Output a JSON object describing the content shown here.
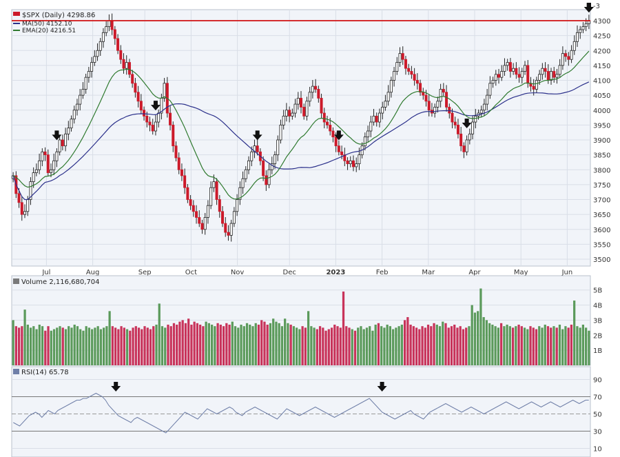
{
  "chart_data": [
    {
      "type": "candlestick",
      "legend": {
        "symbol": "$SPX (Daily) 4298.86",
        "ma": "MA(50) 4152.10",
        "ema": "EMA(20) 4216.51"
      },
      "colors": {
        "up": "#3a7a3a",
        "down": "#cc1a2a",
        "ma": "#2a2f8a",
        "ema": "#2f7a2f",
        "resistance": "#d01010"
      },
      "y_ticks": [
        "4300",
        "4250",
        "4200",
        "4150",
        "4100",
        "4050",
        "4000",
        "3950",
        "3900",
        "3850",
        "3800",
        "3750",
        "3700",
        "3650",
        "3600",
        "3550",
        "3500"
      ],
      "x_ticks": [
        "Jul",
        "Aug",
        "Sep",
        "Oct",
        "Nov",
        "Dec",
        "2023",
        "Feb",
        "Mar",
        "Apr",
        "May",
        "Jun"
      ],
      "resistance_level": 4300,
      "closes": [
        3780,
        3720,
        3690,
        3650,
        3660,
        3700,
        3760,
        3790,
        3800,
        3830,
        3860,
        3850,
        3790,
        3800,
        3830,
        3860,
        3900,
        3880,
        3920,
        3940,
        3970,
        4000,
        4020,
        4050,
        4070,
        4110,
        4130,
        4160,
        4180,
        4200,
        4230,
        4260,
        4280,
        4300,
        4270,
        4240,
        4200,
        4170,
        4140,
        4160,
        4120,
        4090,
        4060,
        4030,
        4000,
        3980,
        3960,
        3950,
        3930,
        3960,
        3990,
        4040,
        4090,
        3990,
        3950,
        3880,
        3840,
        3800,
        3780,
        3740,
        3700,
        3680,
        3660,
        3640,
        3620,
        3600,
        3640,
        3680,
        3740,
        3760,
        3700,
        3660,
        3620,
        3590,
        3580,
        3620,
        3660,
        3700,
        3740,
        3770,
        3800,
        3830,
        3860,
        3880,
        3860,
        3830,
        3780,
        3750,
        3800,
        3820,
        3850,
        3900,
        3950,
        3980,
        4000,
        3980,
        3990,
        4020,
        4040,
        4010,
        3980,
        4030,
        4060,
        4080,
        4070,
        4040,
        3990,
        3960,
        3950,
        3930,
        3910,
        3880,
        3860,
        3850,
        3830,
        3820,
        3830,
        3810,
        3820,
        3850,
        3880,
        3910,
        3930,
        3960,
        3980,
        3960,
        3990,
        4010,
        4030,
        4060,
        4100,
        4130,
        4160,
        4190,
        4170,
        4140,
        4130,
        4120,
        4100,
        4090,
        4060,
        4050,
        4030,
        4000,
        3990,
        4010,
        4030,
        4070,
        4060,
        4010,
        3990,
        3960,
        3950,
        3920,
        3880,
        3860,
        3900,
        3920,
        3960,
        3980,
        3990,
        4000,
        4020,
        4050,
        4090,
        4100,
        4120,
        4110,
        4130,
        4150,
        4160,
        4130,
        4140,
        4120,
        4110,
        4130,
        4150,
        4090,
        4080,
        4070,
        4100,
        4120,
        4140,
        4130,
        4100,
        4130,
        4110,
        4120,
        4150,
        4190,
        4180,
        4170,
        4200,
        4230,
        4260,
        4270,
        4280,
        4290,
        4299
      ],
      "volume_label": "Volume 2,116,680,704",
      "volume_ticks": [
        "5B",
        "4B",
        "3B",
        "2B",
        "1B"
      ],
      "volumes": [
        3.0,
        2.6,
        2.5,
        2.6,
        3.7,
        2.7,
        2.5,
        2.6,
        2.4,
        2.7,
        2.6,
        2.3,
        2.6,
        2.3,
        2.4,
        2.5,
        2.6,
        2.5,
        2.4,
        2.6,
        2.5,
        2.7,
        2.6,
        2.4,
        2.3,
        2.6,
        2.5,
        2.4,
        2.5,
        2.6,
        2.4,
        2.5,
        2.6,
        3.6,
        2.6,
        2.5,
        2.4,
        2.6,
        2.5,
        2.4,
        2.3,
        2.5,
        2.6,
        2.5,
        2.4,
        2.6,
        2.5,
        2.4,
        2.6,
        2.7,
        4.1,
        2.6,
        2.5,
        2.7,
        2.6,
        2.8,
        2.7,
        2.9,
        3.0,
        2.8,
        3.1,
        2.7,
        2.9,
        2.8,
        2.7,
        2.6,
        2.9,
        2.8,
        2.7,
        2.6,
        2.8,
        2.7,
        2.6,
        2.8,
        2.7,
        2.9,
        2.6,
        2.5,
        2.7,
        2.6,
        2.8,
        2.7,
        2.6,
        2.8,
        2.7,
        3.0,
        2.9,
        2.7,
        2.8,
        3.1,
        2.9,
        2.8,
        2.6,
        3.1,
        2.8,
        2.7,
        2.6,
        2.5,
        2.4,
        2.6,
        2.5,
        3.6,
        2.6,
        2.5,
        2.4,
        2.6,
        2.5,
        2.3,
        2.4,
        2.5,
        2.7,
        2.6,
        2.5,
        4.9,
        2.6,
        2.5,
        2.4,
        2.3,
        2.5,
        2.6,
        2.4,
        2.5,
        2.6,
        2.3,
        2.7,
        2.8,
        2.6,
        2.5,
        2.7,
        2.6,
        2.4,
        2.5,
        2.6,
        2.7,
        3.0,
        3.2,
        2.7,
        2.6,
        2.5,
        2.4,
        2.6,
        2.5,
        2.7,
        2.6,
        2.8,
        2.7,
        2.6,
        2.9,
        2.8,
        2.5,
        2.6,
        2.7,
        2.5,
        2.6,
        2.4,
        2.5,
        2.6,
        4.0,
        3.5,
        3.6,
        5.1,
        3.2,
        3.0,
        2.8,
        2.7,
        2.6,
        2.5,
        2.8,
        2.6,
        2.7,
        2.6,
        2.5,
        2.6,
        2.7,
        2.6,
        2.5,
        2.4,
        2.6,
        2.5,
        2.4,
        2.6,
        2.5,
        2.7,
        2.6,
        2.5,
        2.6,
        2.5,
        2.7,
        2.4,
        2.6,
        2.5,
        2.7,
        4.3,
        2.6,
        2.5,
        2.7,
        2.5,
        2.3
      ],
      "rsi_label": "RSI(14) 65.78",
      "rsi_ticks": [
        "90",
        "70",
        "50",
        "30",
        "10"
      ],
      "rsi": [
        40,
        38,
        36,
        40,
        44,
        48,
        50,
        52,
        50,
        46,
        50,
        54,
        52,
        50,
        54,
        56,
        58,
        60,
        62,
        64,
        66,
        66,
        68,
        68,
        70,
        72,
        74,
        72,
        70,
        66,
        60,
        56,
        52,
        48,
        46,
        44,
        42,
        40,
        44,
        46,
        44,
        42,
        40,
        38,
        36,
        34,
        32,
        30,
        28,
        32,
        36,
        40,
        44,
        48,
        52,
        50,
        48,
        46,
        44,
        48,
        52,
        56,
        54,
        52,
        50,
        52,
        54,
        56,
        58,
        56,
        52,
        50,
        48,
        52,
        54,
        56,
        58,
        56,
        54,
        52,
        50,
        48,
        46,
        44,
        48,
        52,
        56,
        54,
        52,
        50,
        48,
        50,
        52,
        54,
        56,
        58,
        56,
        54,
        52,
        50,
        48,
        46,
        48,
        50,
        52,
        54,
        56,
        58,
        60,
        62,
        64,
        66,
        68,
        64,
        60,
        56,
        52,
        50,
        48,
        46,
        44,
        46,
        48,
        50,
        52,
        54,
        50,
        48,
        46,
        44,
        48,
        52,
        54,
        56,
        58,
        60,
        62,
        60,
        58,
        56,
        54,
        52,
        54,
        56,
        58,
        56,
        54,
        52,
        50,
        52,
        54,
        56,
        58,
        60,
        62,
        64,
        62,
        60,
        58,
        56,
        58,
        60,
        62,
        64,
        62,
        60,
        58,
        60,
        62,
        64,
        62,
        60,
        58,
        60,
        62,
        64,
        66,
        64,
        62,
        64,
        66,
        66
      ],
      "arrow_markers": [
        15,
        49,
        84,
        112,
        156,
        211,
        250,
        292,
        346
      ]
    }
  ]
}
